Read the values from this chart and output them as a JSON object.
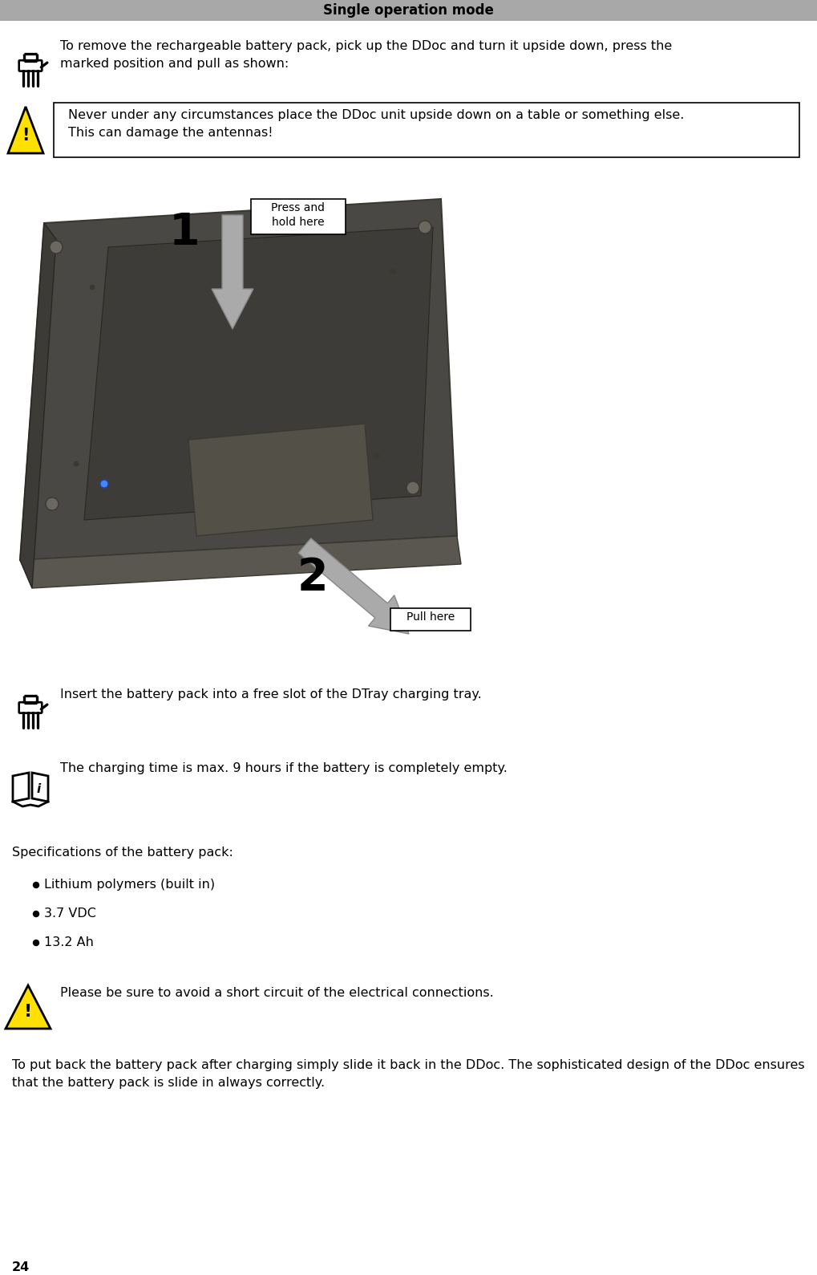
{
  "title": "Single operation mode",
  "title_bg": "#a8a8a8",
  "title_color": "#000000",
  "page_number": "24",
  "bg_color": "#ffffff",
  "text1": "To remove the rechargeable battery pack, pick up the DDoc and turn it upside down, press the\nmarked position and pull as shown:",
  "warning1": "Never under any circumstances place the DDoc unit upside down on a table or something else.\nThis can damage the antennas!",
  "text2": "Insert the battery pack into a free slot of the DTray charging tray.",
  "text3": "The charging time is max. 9 hours if the battery is completely empty.",
  "spec_header": "Specifications of the battery pack:",
  "spec_bullets": [
    "Lithium polymers (built in)",
    "3.7 VDC",
    "13.2 Ah"
  ],
  "warning2": "Please be sure to avoid a short circuit of the electrical connections.",
  "text4": "To put back the battery pack after charging simply slide it back in the DDoc. The sophisticated design of the DDoc ensures that the battery pack is slide in always correctly.",
  "label1": "Press and\nhold here",
  "label2": "Pull here",
  "num1": "1",
  "num2": "2",
  "device_color": "#4a4a3a",
  "device_dark": "#2a2a1e",
  "device_side": "#5a5a4a",
  "arrow_color": "#aaaaaa",
  "arrow_edge": "#888888"
}
